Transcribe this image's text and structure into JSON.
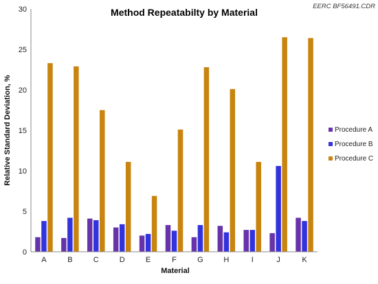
{
  "chart_data": {
    "type": "bar",
    "title": "Method Repeatabilty  by Material",
    "corner_note": "EERC BF56491.CDR",
    "xlabel": "Material",
    "ylabel": "Relative Standard Deviation, %",
    "ylim": [
      0,
      30
    ],
    "yticks": [
      "0",
      "5",
      "10",
      "15",
      "20",
      "25",
      "30"
    ],
    "categories": [
      "A",
      "B",
      "C",
      "D",
      "E",
      "F",
      "G",
      "H",
      "I",
      "J",
      "K"
    ],
    "legend_position": "right",
    "grid": false,
    "series": [
      {
        "name": "Procedure A",
        "color": "#6633aa",
        "values": [
          1.8,
          1.7,
          4.1,
          3.0,
          2.0,
          3.3,
          1.8,
          3.2,
          2.7,
          2.3,
          4.2
        ]
      },
      {
        "name": "Procedure B",
        "color": "#3333dd",
        "values": [
          3.8,
          4.2,
          3.9,
          3.4,
          2.2,
          2.6,
          3.3,
          2.4,
          2.7,
          10.6,
          3.8
        ]
      },
      {
        "name": "Procedure C",
        "color": "#c8840f",
        "values": [
          23.3,
          22.9,
          17.5,
          11.1,
          6.9,
          15.1,
          22.8,
          20.1,
          11.1,
          26.5,
          26.4
        ]
      }
    ]
  }
}
